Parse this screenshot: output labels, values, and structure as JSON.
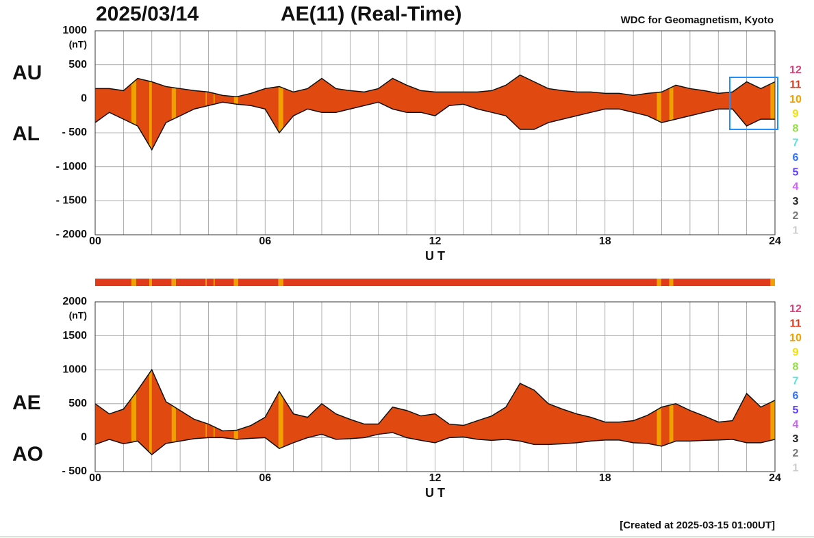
{
  "header": {
    "date": "2025/03/14",
    "title": "AE(11) (Real-Time)",
    "source": "WDC for Geomagnetism, Kyoto"
  },
  "footer": "[Created at 2025-03-15 01:00UT]",
  "chart_data": [
    {
      "type": "band",
      "y_unit": "(nT)",
      "xlabel": "U T",
      "x": [
        0,
        0.5,
        1,
        1.5,
        2,
        2.5,
        3,
        3.5,
        4,
        4.5,
        5,
        5.5,
        6,
        6.5,
        7,
        7.5,
        8,
        8.5,
        9,
        9.5,
        10,
        10.5,
        11,
        11.5,
        12,
        12.5,
        13,
        13.5,
        14,
        14.5,
        15,
        15.5,
        16,
        16.5,
        17,
        17.5,
        18,
        18.5,
        19,
        19.5,
        20,
        20.5,
        21,
        21.5,
        22,
        22.5,
        23,
        23.5,
        24
      ],
      "series": [
        {
          "name": "AU",
          "color": "#111111",
          "values": [
            150,
            150,
            120,
            300,
            250,
            180,
            150,
            120,
            100,
            50,
            30,
            80,
            150,
            180,
            100,
            150,
            300,
            150,
            120,
            100,
            150,
            300,
            200,
            120,
            100,
            100,
            100,
            100,
            120,
            200,
            350,
            250,
            150,
            120,
            100,
            100,
            80,
            80,
            50,
            80,
            100,
            200,
            150,
            120,
            80,
            100,
            250,
            150,
            250
          ]
        },
        {
          "name": "AL",
          "color": "#111111",
          "values": [
            -350,
            -200,
            -300,
            -400,
            -750,
            -350,
            -250,
            -150,
            -100,
            -50,
            -80,
            -100,
            -150,
            -500,
            -250,
            -150,
            -200,
            -200,
            -150,
            -100,
            -50,
            -150,
            -200,
            -200,
            -250,
            -100,
            -80,
            -150,
            -200,
            -250,
            -450,
            -450,
            -350,
            -300,
            -250,
            -200,
            -150,
            -150,
            -200,
            -250,
            -350,
            -300,
            -250,
            -200,
            -150,
            -150,
            -400,
            -300,
            -300
          ]
        }
      ],
      "fill_color": "#e04a10",
      "xlim": [
        0,
        24
      ],
      "xticks": [
        {
          "value": 0,
          "label": "00"
        },
        {
          "value": 6,
          "label": "06"
        },
        12,
        18,
        24
      ],
      "xgrid": [
        0,
        1,
        2,
        3,
        4,
        5,
        6,
        7,
        8,
        9,
        10,
        11,
        12,
        13,
        14,
        15,
        16,
        17,
        18,
        19,
        20,
        21,
        22,
        23,
        24
      ],
      "ylim": [
        -2000,
        1000
      ],
      "yticks": [
        1000,
        500,
        0,
        {
          "value": -500,
          "label": "- 500"
        },
        {
          "value": -1000,
          "label": "- 1000"
        },
        {
          "value": -1500,
          "label": "- 1500"
        },
        {
          "value": -2000,
          "label": "- 2000"
        }
      ],
      "grid": true,
      "legend": {
        "labels": [
          "12",
          "11",
          "10",
          "9",
          "8",
          "7",
          "6",
          "5",
          "4",
          "3",
          "2",
          "1"
        ],
        "colors": [
          "#e0407a",
          "#e03a1a",
          "#f0a000",
          "#f0e000",
          "#90e040",
          "#60e0e0",
          "#3070ff",
          "#6040ff",
          "#d060ff",
          "#222222",
          "#777777",
          "#cccccc"
        ]
      }
    },
    {
      "type": "timeline",
      "starts": [
        0,
        1.28,
        1.45,
        1.91,
        2.0,
        2.7,
        2.85,
        3.9,
        3.94,
        4.18,
        4.22,
        4.9,
        5.05,
        6.47,
        6.64,
        19.83,
        19.98,
        20.27,
        20.41,
        23.84
      ],
      "counts": [
        11,
        10,
        11,
        10,
        11,
        10,
        11,
        10,
        11,
        10,
        11,
        10,
        11,
        10,
        11,
        10,
        11,
        10,
        11,
        10
      ],
      "xlim": [
        0,
        24
      ]
    },
    {
      "type": "band",
      "y_unit": "(nT)",
      "xlabel": "U T",
      "x": [
        0,
        0.5,
        1,
        1.5,
        2,
        2.5,
        3,
        3.5,
        4,
        4.5,
        5,
        5.5,
        6,
        6.5,
        7,
        7.5,
        8,
        8.5,
        9,
        9.5,
        10,
        10.5,
        11,
        11.5,
        12,
        12.5,
        13,
        13.5,
        14,
        14.5,
        15,
        15.5,
        16,
        16.5,
        17,
        17.5,
        18,
        18.5,
        19,
        19.5,
        20,
        20.5,
        21,
        21.5,
        22,
        22.5,
        23,
        23.5,
        24
      ],
      "series": [
        {
          "name": "AE",
          "color": "#111111",
          "values": [
            500,
            350,
            420,
            700,
            1000,
            530,
            400,
            270,
            200,
            100,
            110,
            180,
            300,
            680,
            350,
            300,
            500,
            350,
            270,
            200,
            200,
            450,
            400,
            320,
            350,
            200,
            180,
            250,
            320,
            450,
            800,
            700,
            500,
            420,
            350,
            300,
            230,
            230,
            250,
            330,
            450,
            500,
            400,
            320,
            230,
            250,
            650,
            450,
            550
          ]
        },
        {
          "name": "AO",
          "color": "#111111",
          "values": [
            -100,
            -25,
            -90,
            -50,
            -250,
            -85,
            -50,
            -15,
            0,
            0,
            -25,
            -10,
            0,
            -160,
            -75,
            0,
            50,
            -25,
            -15,
            0,
            50,
            75,
            0,
            -40,
            -75,
            0,
            10,
            -25,
            -40,
            -25,
            -50,
            -100,
            -100,
            -90,
            -75,
            -50,
            -35,
            -35,
            -75,
            -85,
            -125,
            -50,
            -50,
            -40,
            -35,
            -25,
            -75,
            -75,
            -25
          ]
        }
      ],
      "fill_color": "#e04a10",
      "xlim": [
        0,
        24
      ],
      "xticks": [
        {
          "value": 0,
          "label": "00"
        },
        {
          "value": 6,
          "label": "06"
        },
        12,
        18,
        24
      ],
      "xgrid": [
        0,
        1,
        2,
        3,
        4,
        5,
        6,
        7,
        8,
        9,
        10,
        11,
        12,
        13,
        14,
        15,
        16,
        17,
        18,
        19,
        20,
        21,
        22,
        23,
        24
      ],
      "ylim": [
        -500,
        2000
      ],
      "yticks": [
        2000,
        1500,
        1000,
        500,
        0,
        {
          "value": -500,
          "label": "- 500"
        }
      ],
      "grid": true,
      "legend": {
        "labels": [
          "12",
          "11",
          "10",
          "9",
          "8",
          "7",
          "6",
          "5",
          "4",
          "3",
          "2",
          "1"
        ],
        "colors": [
          "#e0407a",
          "#e03a1a",
          "#f0a000",
          "#f0e000",
          "#90e040",
          "#60e0e0",
          "#3070ff",
          "#6040ff",
          "#d060ff",
          "#222222",
          "#777777",
          "#cccccc"
        ]
      }
    }
  ]
}
